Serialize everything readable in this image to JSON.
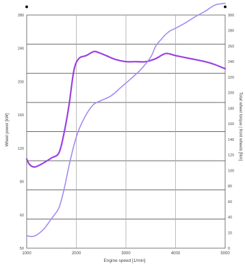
{
  "chart_data": {
    "type": "line",
    "title": "",
    "xlabel": "Engine speed [1/min]",
    "ylabel_left": "Wheel power [kW]",
    "ylabel_right": "Total wheel torque | front wheels [Nm]",
    "xlim": [
      1000,
      5000
    ],
    "ylim_left": [
      50,
      280
    ],
    "ylim_right": [
      0,
      300
    ],
    "x_ticks": [
      "1000",
      "2000",
      "3000",
      "4000",
      "5000"
    ],
    "y_ticks_left": [
      "280",
      "240",
      "200",
      "160",
      "120",
      "80",
      "60",
      "50"
    ],
    "y_ticks_right": [
      "300",
      "280",
      "260",
      "240",
      "220",
      "200",
      "180",
      "160",
      "140",
      "120",
      "100",
      "80",
      "60",
      "40",
      "20",
      "0"
    ],
    "grid": true,
    "series": [
      {
        "axis": "left",
        "color": "#9b3fe0",
        "x": [
          1000,
          1050,
          1150,
          1300,
          1500,
          1650,
          1750,
          1850,
          1950,
          2050,
          2200,
          2350,
          2450,
          2600,
          2800,
          3000,
          3200,
          3400,
          3600,
          3800,
          4000,
          4200,
          4400,
          4600,
          4800,
          5000
        ],
        "values": [
          138,
          133,
          130,
          133,
          139,
          144,
          163,
          190,
          225,
          237,
          240,
          244,
          243,
          240,
          236,
          234,
          234,
          234,
          237,
          242,
          240,
          238,
          236,
          234,
          231,
          227
        ]
      },
      {
        "axis": "right",
        "color": "#a48af0",
        "x": [
          1000,
          1100,
          1200,
          1350,
          1500,
          1650,
          1750,
          1850,
          1950,
          2050,
          2200,
          2350,
          2500,
          2700,
          2900,
          3100,
          3300,
          3500,
          3600,
          3700,
          3800,
          3900,
          4000,
          4200,
          4400,
          4600,
          4800,
          5000
        ],
        "values": [
          16,
          15,
          17,
          25,
          38,
          52,
          75,
          105,
          132,
          152,
          172,
          185,
          190,
          196,
          207,
          218,
          230,
          246,
          260,
          268,
          275,
          280,
          283,
          290,
          298,
          305,
          313,
          315
        ]
      }
    ]
  }
}
